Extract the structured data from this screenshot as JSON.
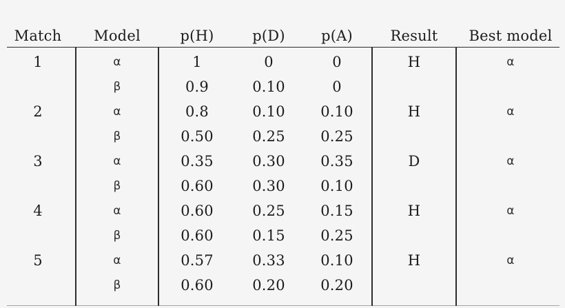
{
  "page": {
    "background_color": "#f5f5f5",
    "rule_color_dark": "#2c2c2c",
    "rule_color_light": "#a3a3a3",
    "text_color": "#1c1c1c"
  },
  "table": {
    "headers": [
      "Match",
      "Model",
      "p(H)",
      "p(D)",
      "p(A)",
      "Result",
      "Best model"
    ],
    "rows": [
      [
        "1",
        "α",
        "1",
        "0",
        "0",
        "H",
        "α"
      ],
      [
        "",
        "β",
        "0.9",
        "0.10",
        "0",
        "",
        ""
      ],
      [
        "2",
        "α",
        "0.8",
        "0.10",
        "0.10",
        "H",
        "α"
      ],
      [
        "",
        "β",
        "0.50",
        "0.25",
        "0.25",
        "",
        ""
      ],
      [
        "3",
        "α",
        "0.35",
        "0.30",
        "0.35",
        "D",
        "α"
      ],
      [
        "",
        "β",
        "0.60",
        "0.30",
        "0.10",
        "",
        ""
      ],
      [
        "4",
        "α",
        "0.60",
        "0.25",
        "0.15",
        "H",
        "α"
      ],
      [
        "",
        "β",
        "0.60",
        "0.15",
        "0.25",
        "",
        ""
      ],
      [
        "5",
        "α",
        "0.57",
        "0.33",
        "0.10",
        "H",
        "α"
      ],
      [
        "",
        "β",
        "0.60",
        "0.20",
        "0.20",
        "",
        ""
      ]
    ]
  }
}
